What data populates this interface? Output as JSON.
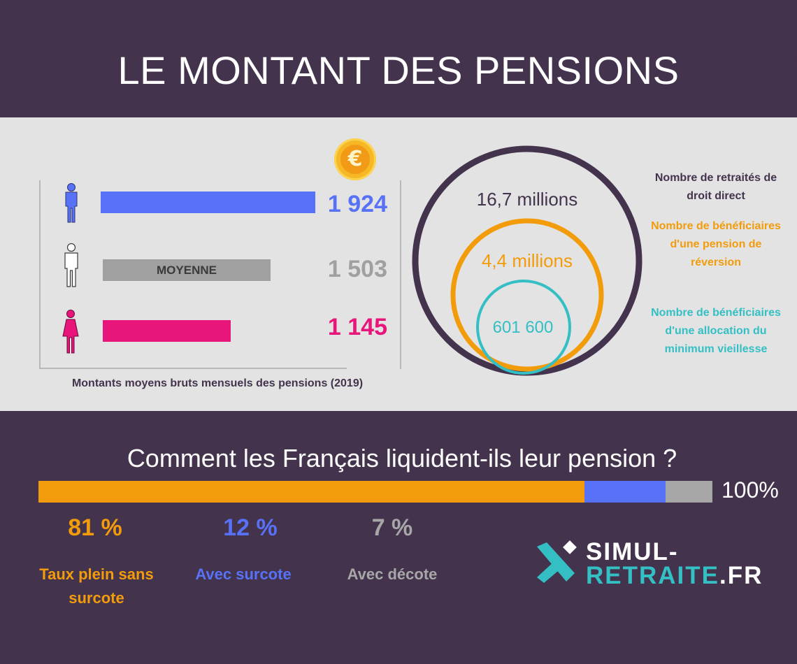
{
  "title": "LE MONTANT DES PENSIONS",
  "colors": {
    "background": "#44334d",
    "panel": "#e3e3e3",
    "men": "#5872f7",
    "average": "#a0a0a0",
    "women": "#e8157a",
    "orange": "#f29c0c",
    "teal": "#33bfc4",
    "gray": "#a7a7a7"
  },
  "pensions": {
    "average_label": "MOYENNE",
    "caption": "Montants moyens bruts mensuels des pensions (2019)",
    "men_display": "1 924",
    "average_display": "1 503",
    "women_display": "1 145",
    "currency_icon": "euro-coin-icon",
    "currency_symbol": "€"
  },
  "circles": {
    "outer_label": "16,7 millions",
    "middle_label": "4,4 millions",
    "inner_label": "601 600",
    "legend_outer": "Nombre de retraités de droit direct",
    "legend_middle": "Nombre de bénéficiaires d'une pension de réversion",
    "legend_inner": "Nombre de bénéficiaires d'une allocation du minimum vieillesse"
  },
  "liquidation": {
    "question": "Comment les Français liquident-ils leur pension ?",
    "total_label": "100%",
    "items": [
      {
        "pct": "81 %",
        "label": "Taux plein sans surcote",
        "color": "#f29c0c"
      },
      {
        "pct": "12 %",
        "label": "Avec surcote",
        "color": "#5872f7"
      },
      {
        "pct": "7 %",
        "label": "Avec décote",
        "color": "#a7a7a7"
      }
    ]
  },
  "logo": {
    "line1": "SIMUL-",
    "line2": "RETRAITE",
    "suffix": ".FR"
  },
  "chart_data": [
    {
      "type": "bar",
      "orientation": "horizontal",
      "categories": [
        "Hommes",
        "MOYENNE",
        "Femmes"
      ],
      "values": [
        1924,
        1503,
        1145
      ],
      "title": "",
      "xlabel": "Montants moyens bruts mensuels des pensions (2019)",
      "ylabel": "",
      "xlim": [
        0,
        2200
      ]
    },
    {
      "type": "bar",
      "stacked": true,
      "categories": [
        "Taux plein sans surcote",
        "Avec surcote",
        "Avec décote"
      ],
      "values": [
        81,
        12,
        7
      ],
      "title": "Comment les Français liquident-ils leur pension ?",
      "total": 100
    },
    {
      "type": "area",
      "subtype": "nested-circles",
      "categories": [
        "Nombre de retraités de droit direct",
        "Nombre de bénéficiaires d'une pension de réversion",
        "Nombre de bénéficiaires d'une allocation du minimum vieillesse"
      ],
      "values": [
        16700000,
        4400000,
        601600
      ],
      "labels": [
        "16,7 millions",
        "4,4 millions",
        "601 600"
      ]
    }
  ]
}
